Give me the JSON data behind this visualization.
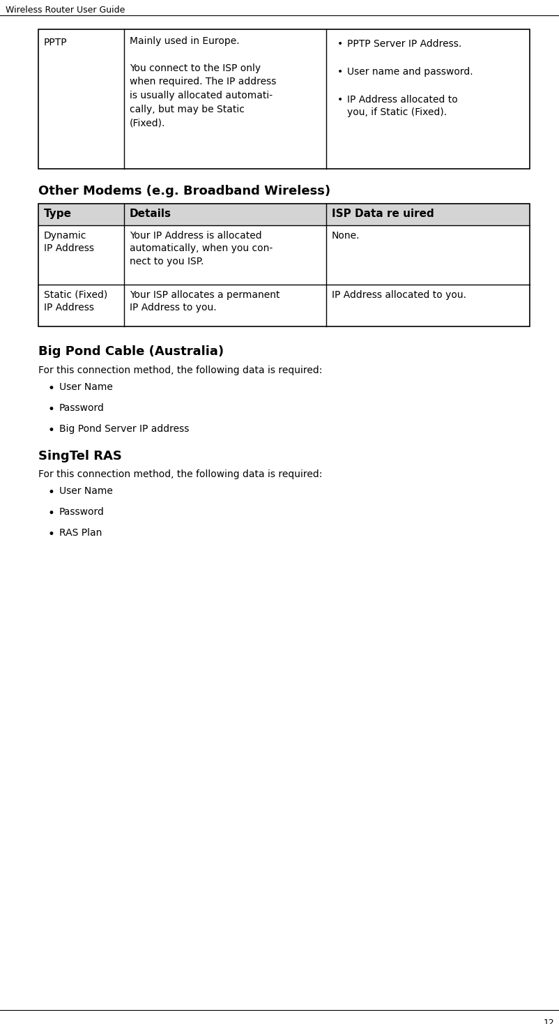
{
  "page_title": "Wireless Router User Guide",
  "page_number": "12",
  "bg": "#ffffff",
  "fg": "#000000",
  "header_bg": "#d4d4d4",
  "line_color": "#000000",
  "page_title_fontsize": 9,
  "body_fontsize": 10,
  "section_fontsize": 13,
  "header_fontsize": 11,
  "t1_col1_text": "PPTP",
  "t1_col2_text": "Mainly used in Europe.\n\nYou connect to the ISP only\nwhen required. The IP address\nis usually allocated automati-\ncally, but may be Static\n(Fixed).",
  "t1_col3_bullets": [
    "PPTP Server IP Address.",
    "User name and password.",
    "IP Address allocated to\nyou, if Static (Fixed)."
  ],
  "section2_title": "Other Modems (e.g. Broadband Wireless)",
  "t2_headers": [
    "Type",
    "Details",
    "ISP Data re uired"
  ],
  "t2_row1": [
    "Dynamic\nIP Address",
    "Your IP Address is allocated\nautomatically, when you con-\nnect to you ISP.",
    "None."
  ],
  "t2_row2": [
    "Static (Fixed)\nIP Address",
    "Your ISP allocates a permanent\nIP Address to you.",
    "IP Address allocated to you."
  ],
  "section3_title": "Big Pond Cable (Australia)",
  "section3_intro": "For this connection method, the following data is required:",
  "section3_bullets": [
    "User Name",
    "Password",
    "Big Pond Server IP address"
  ],
  "section4_title": "SingTel RAS",
  "section4_intro": "For this connection method, the following data is required:",
  "section4_bullets": [
    "User Name",
    "Password",
    "RAS Plan"
  ]
}
